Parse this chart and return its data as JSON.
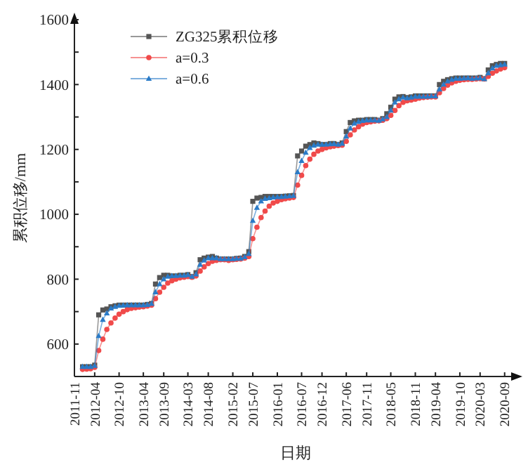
{
  "chart_data": {
    "type": "line",
    "xlabel": "日期",
    "ylabel": "累积位移/mm",
    "legend": "top left",
    "grid": false,
    "xlim": [
      "2011-11",
      "2020-12"
    ],
    "xticks": [
      "2011-11",
      "2012-04",
      "2012-10",
      "2013-04",
      "2013-09",
      "2014-03",
      "2014-08",
      "2015-02",
      "2015-07",
      "2016-01",
      "2016-07",
      "2016-12",
      "2017-06",
      "2017-11",
      "2018-05",
      "2018-11",
      "2019-04",
      "2019-10",
      "2020-03",
      "2020-09"
    ],
    "ylim": [
      500,
      1600
    ],
    "yticks": [
      {
        "value": 500,
        "label": null
      },
      600,
      {
        "value": 700,
        "label": null
      },
      800,
      {
        "value": 900,
        "label": null
      },
      1000,
      {
        "value": 1100,
        "label": null
      },
      1200,
      {
        "value": 1300,
        "label": null
      },
      1400,
      {
        "value": 1500,
        "label": null
      },
      1600
    ],
    "x": [
      "2012-01",
      "2012-02",
      "2012-03",
      "2012-04",
      "2012-05",
      "2012-06",
      "2012-07",
      "2012-08",
      "2012-09",
      "2012-10",
      "2012-11",
      "2012-12",
      "2013-01",
      "2013-02",
      "2013-03",
      "2013-04",
      "2013-05",
      "2013-06",
      "2013-07",
      "2013-08",
      "2013-09",
      "2013-10",
      "2013-11",
      "2013-12",
      "2014-01",
      "2014-02",
      "2014-03",
      "2014-04",
      "2014-05",
      "2014-06",
      "2014-07",
      "2014-08",
      "2014-09",
      "2014-10",
      "2014-11",
      "2014-12",
      "2015-01",
      "2015-02",
      "2015-03",
      "2015-04",
      "2015-05",
      "2015-06",
      "2015-07",
      "2015-08",
      "2015-09",
      "2015-10",
      "2015-11",
      "2015-12",
      "2016-01",
      "2016-02",
      "2016-03",
      "2016-04",
      "2016-05",
      "2016-06",
      "2016-07",
      "2016-08",
      "2016-09",
      "2016-10",
      "2016-11",
      "2016-12",
      "2017-01",
      "2017-02",
      "2017-03",
      "2017-04",
      "2017-05",
      "2017-06",
      "2017-07",
      "2017-08",
      "2017-09",
      "2017-10",
      "2017-11",
      "2017-12",
      "2018-01",
      "2018-02",
      "2018-03",
      "2018-04",
      "2018-05",
      "2018-06",
      "2018-07",
      "2018-08",
      "2018-09",
      "2018-10",
      "2018-11",
      "2018-12",
      "2019-01",
      "2019-02",
      "2019-03",
      "2019-04",
      "2019-05",
      "2019-06",
      "2019-07",
      "2019-08",
      "2019-09",
      "2019-10",
      "2019-11",
      "2019-12",
      "2020-01",
      "2020-02",
      "2020-03",
      "2020-04",
      "2020-05",
      "2020-06",
      "2020-07",
      "2020-08",
      "2020-09"
    ],
    "series": [
      {
        "name": "ZG325累积位移",
        "color": "#555555",
        "marker": "square",
        "values": [
          530,
          530,
          530,
          535,
          690,
          705,
          708,
          715,
          718,
          720,
          720,
          720,
          720,
          720,
          720,
          720,
          722,
          725,
          785,
          805,
          812,
          812,
          810,
          810,
          812,
          812,
          814,
          808,
          820,
          860,
          865,
          868,
          870,
          865,
          862,
          862,
          862,
          862,
          864,
          865,
          870,
          885,
          1040,
          1050,
          1052,
          1055,
          1055,
          1055,
          1055,
          1055,
          1056,
          1057,
          1058,
          1180,
          1195,
          1210,
          1215,
          1220,
          1218,
          1215,
          1215,
          1218,
          1218,
          1215,
          1220,
          1255,
          1283,
          1288,
          1290,
          1290,
          1292,
          1292,
          1292,
          1290,
          1295,
          1310,
          1330,
          1355,
          1362,
          1363,
          1360,
          1362,
          1365,
          1365,
          1365,
          1365,
          1365,
          1365,
          1400,
          1410,
          1415,
          1418,
          1420,
          1420,
          1420,
          1420,
          1420,
          1420,
          1422,
          1418,
          1445,
          1458,
          1462,
          1465,
          1465
        ]
      },
      {
        "name": "a=0.3",
        "color": "#f04a4a",
        "marker": "circle",
        "values": [
          522,
          523,
          524,
          528,
          580,
          615,
          645,
          665,
          680,
          692,
          700,
          706,
          710,
          712,
          714,
          715,
          717,
          720,
          740,
          760,
          775,
          788,
          795,
          800,
          804,
          806,
          808,
          806,
          810,
          825,
          838,
          848,
          855,
          858,
          860,
          860,
          858,
          860,
          861,
          862,
          865,
          870,
          925,
          960,
          990,
          1010,
          1025,
          1035,
          1040,
          1045,
          1048,
          1050,
          1052,
          1090,
          1120,
          1150,
          1170,
          1185,
          1195,
          1200,
          1205,
          1208,
          1210,
          1212,
          1213,
          1225,
          1245,
          1260,
          1270,
          1278,
          1283,
          1285,
          1287,
          1288,
          1290,
          1295,
          1305,
          1320,
          1335,
          1345,
          1350,
          1352,
          1355,
          1358,
          1360,
          1361,
          1362,
          1362,
          1375,
          1388,
          1398,
          1405,
          1410,
          1413,
          1415,
          1416,
          1416,
          1417,
          1418,
          1417,
          1425,
          1435,
          1442,
          1448,
          1452
        ]
      },
      {
        "name": "a=0.6",
        "color": "#2a7bc8",
        "marker": "triangle",
        "values": [
          530,
          530,
          530,
          533,
          625,
          675,
          695,
          710,
          715,
          718,
          719,
          720,
          720,
          720,
          720,
          720,
          721,
          724,
          760,
          785,
          800,
          808,
          810,
          810,
          811,
          811,
          813,
          808,
          815,
          845,
          858,
          865,
          865,
          865,
          862,
          862,
          862,
          862,
          863,
          864,
          868,
          878,
          980,
          1020,
          1040,
          1048,
          1050,
          1052,
          1053,
          1054,
          1055,
          1056,
          1057,
          1130,
          1165,
          1190,
          1205,
          1212,
          1215,
          1215,
          1215,
          1216,
          1217,
          1215,
          1218,
          1240,
          1265,
          1280,
          1285,
          1288,
          1290,
          1290,
          1290,
          1289,
          1293,
          1300,
          1320,
          1345,
          1355,
          1360,
          1358,
          1360,
          1363,
          1363,
          1363,
          1363,
          1364,
          1364,
          1385,
          1400,
          1410,
          1415,
          1418,
          1418,
          1419,
          1420,
          1418,
          1419,
          1420,
          1417,
          1435,
          1450,
          1458,
          1460,
          1462
        ]
      }
    ]
  }
}
